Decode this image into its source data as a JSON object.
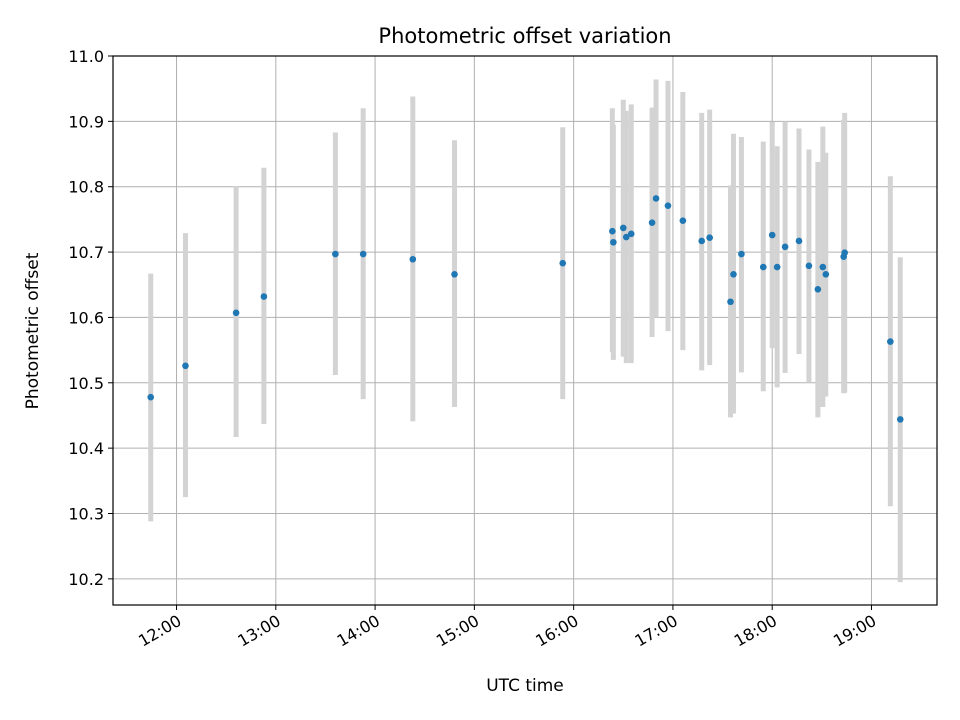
{
  "chart_data": {
    "type": "scatter",
    "title": "Photometric offset variation",
    "xlabel": "UTC time",
    "ylabel": "Photometric offset",
    "grid": true,
    "xlim_hours": [
      11.36,
      19.66
    ],
    "ylim": [
      10.16,
      11.0
    ],
    "x_tick_labels": [
      "12:00",
      "13:00",
      "14:00",
      "15:00",
      "16:00",
      "17:00",
      "18:00",
      "19:00"
    ],
    "x_tick_hours": [
      12,
      13,
      14,
      15,
      16,
      17,
      18,
      19
    ],
    "y_tick_labels": [
      "10.2",
      "10.3",
      "10.4",
      "10.5",
      "10.6",
      "10.7",
      "10.8",
      "10.9",
      "11.0"
    ],
    "y_ticks": [
      10.2,
      10.3,
      10.4,
      10.5,
      10.6,
      10.7,
      10.8,
      10.9,
      11.0
    ],
    "marker_color": "#1f77b4",
    "errorbar_color": "#d3d3d3",
    "points": [
      {
        "x": 11.74,
        "y": 10.478,
        "low": 10.288,
        "high": 10.667
      },
      {
        "x": 12.09,
        "y": 10.526,
        "low": 10.325,
        "high": 10.729
      },
      {
        "x": 12.6,
        "y": 10.607,
        "low": 10.417,
        "high": 10.801
      },
      {
        "x": 12.88,
        "y": 10.632,
        "low": 10.437,
        "high": 10.829
      },
      {
        "x": 13.6,
        "y": 10.697,
        "low": 10.512,
        "high": 10.883
      },
      {
        "x": 13.88,
        "y": 10.697,
        "low": 10.475,
        "high": 10.92
      },
      {
        "x": 14.38,
        "y": 10.689,
        "low": 10.441,
        "high": 10.938
      },
      {
        "x": 14.8,
        "y": 10.666,
        "low": 10.463,
        "high": 10.871
      },
      {
        "x": 15.89,
        "y": 10.683,
        "low": 10.475,
        "high": 10.891
      },
      {
        "x": 16.39,
        "y": 10.732,
        "low": 10.547,
        "high": 10.92
      },
      {
        "x": 16.4,
        "y": 10.715,
        "low": 10.535,
        "high": 10.895
      },
      {
        "x": 16.5,
        "y": 10.737,
        "low": 10.54,
        "high": 10.933
      },
      {
        "x": 16.53,
        "y": 10.723,
        "low": 10.53,
        "high": 10.916
      },
      {
        "x": 16.58,
        "y": 10.728,
        "low": 10.53,
        "high": 10.926
      },
      {
        "x": 16.79,
        "y": 10.745,
        "low": 10.57,
        "high": 10.921
      },
      {
        "x": 16.83,
        "y": 10.782,
        "low": 10.6,
        "high": 10.964
      },
      {
        "x": 16.95,
        "y": 10.771,
        "low": 10.579,
        "high": 10.962
      },
      {
        "x": 17.1,
        "y": 10.748,
        "low": 10.55,
        "high": 10.945
      },
      {
        "x": 17.29,
        "y": 10.717,
        "low": 10.519,
        "high": 10.913
      },
      {
        "x": 17.37,
        "y": 10.722,
        "low": 10.527,
        "high": 10.918
      },
      {
        "x": 17.58,
        "y": 10.624,
        "low": 10.447,
        "high": 10.802
      },
      {
        "x": 17.61,
        "y": 10.666,
        "low": 10.453,
        "high": 10.881
      },
      {
        "x": 17.69,
        "y": 10.697,
        "low": 10.516,
        "high": 10.876
      },
      {
        "x": 17.91,
        "y": 10.677,
        "low": 10.487,
        "high": 10.869
      },
      {
        "x": 18.0,
        "y": 10.726,
        "low": 10.553,
        "high": 10.899
      },
      {
        "x": 18.05,
        "y": 10.677,
        "low": 10.493,
        "high": 10.862
      },
      {
        "x": 18.13,
        "y": 10.708,
        "low": 10.515,
        "high": 10.9
      },
      {
        "x": 18.27,
        "y": 10.717,
        "low": 10.544,
        "high": 10.889
      },
      {
        "x": 18.37,
        "y": 10.679,
        "low": 10.5,
        "high": 10.857
      },
      {
        "x": 18.46,
        "y": 10.643,
        "low": 10.447,
        "high": 10.838
      },
      {
        "x": 18.51,
        "y": 10.677,
        "low": 10.463,
        "high": 10.892
      },
      {
        "x": 18.54,
        "y": 10.666,
        "low": 10.479,
        "high": 10.852
      },
      {
        "x": 18.72,
        "y": 10.693,
        "low": 10.484,
        "high": 10.902
      },
      {
        "x": 18.73,
        "y": 10.699,
        "low": 10.485,
        "high": 10.913
      },
      {
        "x": 19.19,
        "y": 10.563,
        "low": 10.311,
        "high": 10.816
      },
      {
        "x": 19.29,
        "y": 10.444,
        "low": 10.195,
        "high": 10.692
      }
    ]
  }
}
